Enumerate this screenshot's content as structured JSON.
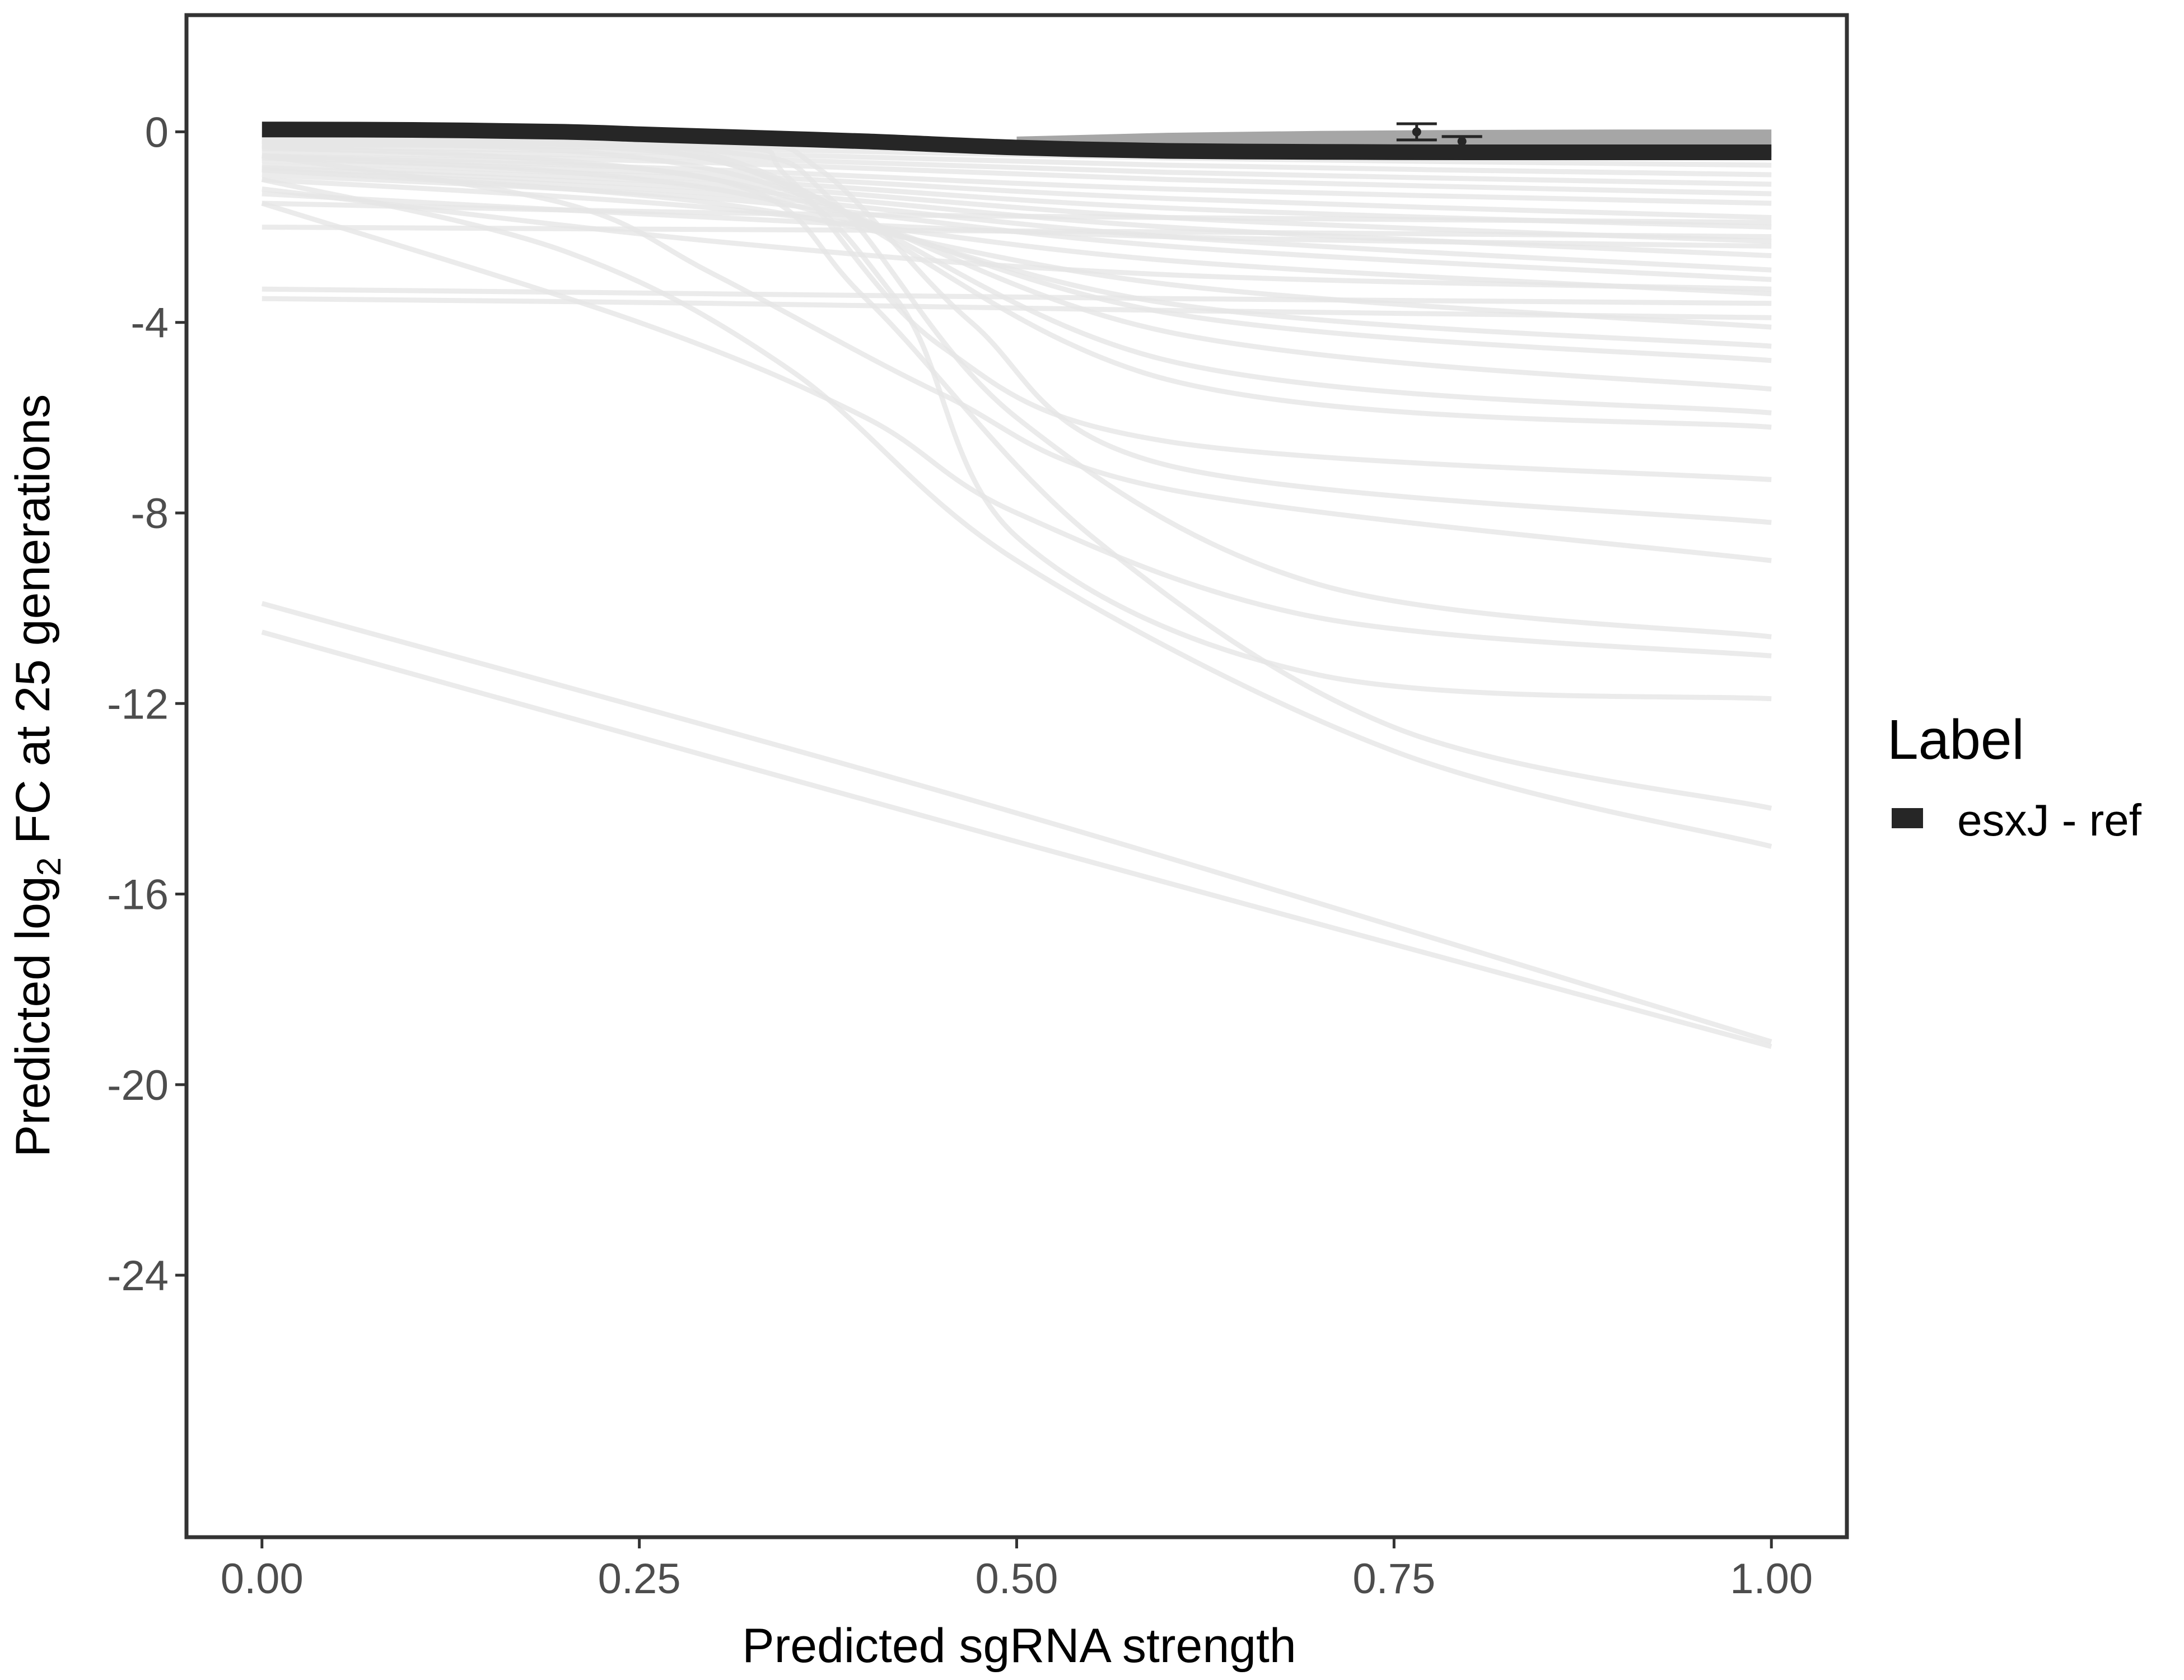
{
  "chart_data": {
    "type": "line",
    "title": "",
    "xlabel": "Predicted sgRNA strength",
    "ylabel_parts": {
      "prefix": "Predicted  log",
      "subscript": "2",
      "suffix": " FC at 25 generations"
    },
    "xlim": [
      -0.05,
      1.05
    ],
    "ylim": [
      -29.5,
      2.45
    ],
    "x_ticks": [
      0,
      0.25,
      0.5,
      0.75,
      1
    ],
    "x_tick_labels": [
      "0.00",
      "0.25",
      "0.50",
      "0.75",
      "1.00"
    ],
    "y_ticks": [
      0,
      -4,
      -8,
      -12,
      -16,
      -20,
      -24
    ],
    "y_tick_labels": [
      "0",
      "-4",
      "-8",
      "-12",
      "-16",
      "-20",
      "-24"
    ],
    "grid": false,
    "legend": {
      "title": "Label",
      "position": "right",
      "entries": [
        {
          "label": "esxJ - ref",
          "color": "#262626"
        }
      ]
    },
    "highlight_series": {
      "name": "esxJ - ref",
      "color": "#262626",
      "x": [
        0,
        0.1,
        0.2,
        0.25,
        0.3,
        0.4,
        0.5,
        0.6,
        0.7,
        0.8,
        0.9,
        1.0
      ],
      "y": [
        0.05,
        0.04,
        0.0,
        -0.05,
        -0.1,
        -0.2,
        -0.33,
        -0.4,
        -0.42,
        -0.43,
        -0.43,
        -0.43
      ]
    },
    "band": {
      "color": "#a6a6a6",
      "x": [
        0.5,
        0.6,
        0.7,
        0.8,
        0.9,
        1.0
      ],
      "y_upper": [
        -0.1,
        -0.02,
        0.02,
        0.04,
        0.05,
        0.05
      ],
      "y_lower": [
        -0.4,
        -0.45,
        -0.5,
        -0.52,
        -0.53,
        -0.53
      ]
    },
    "points": [
      {
        "x": 0.765,
        "y": 0.0,
        "ymin": -0.17,
        "ymax": 0.17
      },
      {
        "x": 0.795,
        "y": -0.2,
        "ymin": -0.1,
        "ymax": -0.1
      }
    ],
    "background_series_color": "#e6e6e6",
    "background_series": [
      {
        "x": [
          0,
          0.3,
          0.6,
          1.0
        ],
        "y": [
          -0.1,
          -0.15,
          -0.25,
          -0.3
        ]
      },
      {
        "x": [
          0,
          0.3,
          0.6,
          1.0
        ],
        "y": [
          -0.2,
          -0.25,
          -0.4,
          -0.5
        ]
      },
      {
        "x": [
          0,
          0.3,
          0.6,
          1.0
        ],
        "y": [
          -0.25,
          -0.35,
          -0.55,
          -0.7
        ]
      },
      {
        "x": [
          0,
          0.3,
          0.6,
          1.0
        ],
        "y": [
          -0.3,
          -0.45,
          -0.7,
          -0.9
        ]
      },
      {
        "x": [
          0,
          0.3,
          0.6,
          1.0
        ],
        "y": [
          -0.35,
          -0.55,
          -0.85,
          -1.1
        ]
      },
      {
        "x": [
          0,
          0.3,
          0.6,
          1.0
        ],
        "y": [
          -0.4,
          -0.65,
          -1.0,
          -1.3
        ]
      },
      {
        "x": [
          0,
          0.3,
          0.6,
          1.0
        ],
        "y": [
          -0.5,
          -0.8,
          -1.2,
          -1.5
        ]
      },
      {
        "x": [
          0,
          0.3,
          0.6,
          1.0
        ],
        "y": [
          -0.55,
          -0.9,
          -1.4,
          -1.8
        ]
      },
      {
        "x": [
          0,
          0.3,
          0.6,
          1.0
        ],
        "y": [
          -0.6,
          -1.0,
          -1.6,
          -2.0
        ]
      },
      {
        "x": [
          0,
          0.3,
          0.6,
          1.0
        ],
        "y": [
          -0.7,
          -1.1,
          -1.8,
          -2.3
        ]
      },
      {
        "x": [
          0,
          0.3,
          0.6,
          1.0
        ],
        "y": [
          -0.75,
          -1.2,
          -2.0,
          -2.6
        ]
      },
      {
        "x": [
          0,
          0.3,
          0.6,
          1.0
        ],
        "y": [
          -0.8,
          -1.3,
          -2.2,
          -2.9
        ]
      },
      {
        "x": [
          0,
          0.3,
          0.6,
          1.0
        ],
        "y": [
          -0.9,
          -1.4,
          -2.4,
          -3.1
        ]
      },
      {
        "x": [
          0,
          0.3,
          0.6,
          1.0
        ],
        "y": [
          -1.0,
          -1.6,
          -2.7,
          -3.4
        ]
      },
      {
        "x": [
          0,
          0.3,
          0.6,
          1.0
        ],
        "y": [
          -1.3,
          -1.8,
          -2.2,
          -2.4
        ]
      },
      {
        "x": [
          0,
          0.3,
          0.6,
          1.0
        ],
        "y": [
          -1.5,
          -1.7,
          -1.8,
          -1.9
        ]
      },
      {
        "x": [
          0,
          0.3,
          0.6,
          1.0
        ],
        "y": [
          -2.0,
          -2.05,
          -2.1,
          -2.2
        ]
      },
      {
        "x": [
          0,
          0.3,
          0.6,
          1.0
        ],
        "y": [
          -1.2,
          -2.3,
          -3.0,
          -3.3
        ]
      },
      {
        "x": [
          0,
          0.3,
          0.6,
          1.0
        ],
        "y": [
          -3.3,
          -3.4,
          -3.5,
          -3.6
        ]
      },
      {
        "x": [
          0,
          0.3,
          0.6,
          1.0
        ],
        "y": [
          -3.5,
          -3.6,
          -3.75,
          -3.9
        ]
      },
      {
        "x": [
          0,
          0.3,
          0.6,
          1.0
        ],
        "y": [
          -0.8,
          -1.5,
          -3.2,
          -4.1
        ]
      },
      {
        "x": [
          0,
          0.3,
          0.6,
          1.0
        ],
        "y": [
          -0.5,
          -1.2,
          -3.6,
          -4.5
        ]
      },
      {
        "x": [
          0,
          0.3,
          0.6,
          1.0
        ],
        "y": [
          -0.3,
          -1.0,
          -3.8,
          -4.8
        ]
      },
      {
        "x": [
          0,
          0.3,
          0.6,
          1.0
        ],
        "y": [
          -0.2,
          -0.8,
          -4.2,
          -5.4
        ]
      },
      {
        "x": [
          0,
          0.3,
          0.6,
          1.0
        ],
        "y": [
          -0.2,
          -0.6,
          -4.8,
          -5.9
        ]
      },
      {
        "x": [
          0,
          0.3,
          0.6,
          1.0
        ],
        "y": [
          -0.1,
          -0.5,
          -5.2,
          -6.2
        ]
      },
      {
        "x": [
          0,
          0.3,
          0.35,
          0.45,
          0.6,
          1.0
        ],
        "y": [
          -0.2,
          -0.3,
          -1.0,
          -4.5,
          -6.5,
          -7.3
        ]
      },
      {
        "x": [
          0,
          0.3,
          0.37,
          0.47,
          0.6,
          1.0
        ],
        "y": [
          -0.1,
          -0.25,
          -0.8,
          -4.0,
          -7.0,
          -8.2
        ]
      },
      {
        "x": [
          0,
          0.2,
          0.3,
          0.45,
          0.6,
          1.0
        ],
        "y": [
          -0.5,
          -1.5,
          -3.0,
          -5.5,
          -7.5,
          -9.0
        ]
      },
      {
        "x": [
          0,
          0.3,
          0.38,
          0.5,
          0.7,
          1.0
        ],
        "y": [
          -0.2,
          -0.4,
          -1.5,
          -6.0,
          -9.5,
          -10.6
        ]
      },
      {
        "x": [
          0,
          0.25,
          0.4,
          0.5,
          0.7,
          1.0
        ],
        "y": [
          -1.5,
          -4.0,
          -6.0,
          -8.0,
          -10.2,
          -11.0
        ]
      },
      {
        "x": [
          0,
          0.3,
          0.42,
          0.5,
          0.7,
          1.0
        ],
        "y": [
          -0.3,
          -0.6,
          -3.5,
          -8.5,
          -11.4,
          -11.9
        ]
      },
      {
        "x": [
          0,
          0.3,
          0.4,
          0.55,
          0.75,
          1.0
        ],
        "y": [
          -0.5,
          -1.0,
          -3.5,
          -8.5,
          -12.5,
          -14.2
        ]
      },
      {
        "x": [
          0,
          0.2,
          0.35,
          0.5,
          0.75,
          1.0
        ],
        "y": [
          -1.0,
          -2.5,
          -5.0,
          -9.0,
          -13.0,
          -15.0
        ]
      },
      {
        "x": [
          0,
          0.5,
          1.0
        ],
        "y": [
          -9.9,
          -14.3,
          -19.1
        ]
      },
      {
        "x": [
          0,
          0.5,
          1.0
        ],
        "y": [
          -10.5,
          -14.9,
          -19.2
        ]
      }
    ]
  }
}
